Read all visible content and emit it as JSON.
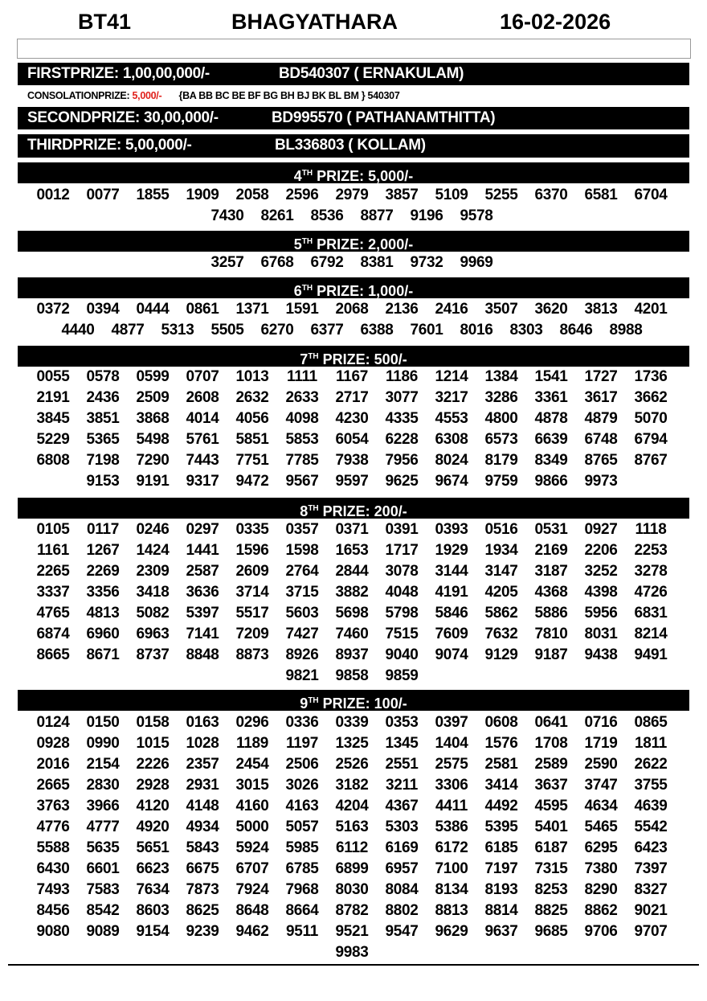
{
  "header": {
    "draw_code": "BT41",
    "lottery_name": "BHAGYATHARA",
    "date": "16-02-2026"
  },
  "first_prize": {
    "label": "FIRSTPRIZE: 1,00,00,000/-",
    "winner": "BD540307 ( ERNAKULAM)"
  },
  "consolation": {
    "label": "CONSOLATIONPRIZE:",
    "amount": "5,000/-",
    "series": "{BA BB BC BE BF BG BH BJ BK BL BM } 540307",
    "amount_color": "#e0201b"
  },
  "second_prize": {
    "label": "SECONDPRIZE: 30,00,000/-",
    "winner": "BD995570 ( PATHANAMTHITTA)"
  },
  "third_prize": {
    "label": "THIRDPRIZE: 5,00,000/-",
    "winner": "BL336803 ( KOLLAM)"
  },
  "prizes": [
    {
      "ordinal": "4",
      "suffix": "TH",
      "label": "PRIZE: 5,000/-",
      "numbers": [
        "0012",
        "0077",
        "1855",
        "1909",
        "2058",
        "2596",
        "2979",
        "3857",
        "5109",
        "5255",
        "6370",
        "6581",
        "6704",
        "7430",
        "8261",
        "8536",
        "8877",
        "9196",
        "9578"
      ]
    },
    {
      "ordinal": "5",
      "suffix": "TH",
      "label": "PRIZE: 2,000/-",
      "numbers": [
        "3257",
        "6768",
        "6792",
        "8381",
        "9732",
        "9969"
      ]
    },
    {
      "ordinal": "6",
      "suffix": "TH",
      "label": "PRIZE: 1,000/-",
      "numbers": [
        "0372",
        "0394",
        "0444",
        "0861",
        "1371",
        "1591",
        "2068",
        "2136",
        "2416",
        "3507",
        "3620",
        "3813",
        "4201",
        "4440",
        "4877",
        "5313",
        "5505",
        "6270",
        "6377",
        "6388",
        "7601",
        "8016",
        "8303",
        "8646",
        "8988"
      ]
    },
    {
      "ordinal": "7",
      "suffix": "TH",
      "label": "PRIZE: 500/-",
      "numbers": [
        "0055",
        "0578",
        "0599",
        "0707",
        "1013",
        "1111",
        "1167",
        "1186",
        "1214",
        "1384",
        "1541",
        "1727",
        "1736",
        "2191",
        "2436",
        "2509",
        "2608",
        "2632",
        "2633",
        "2717",
        "3077",
        "3217",
        "3286",
        "3361",
        "3617",
        "3662",
        "3845",
        "3851",
        "3868",
        "4014",
        "4056",
        "4098",
        "4230",
        "4335",
        "4553",
        "4800",
        "4878",
        "4879",
        "5070",
        "5229",
        "5365",
        "5498",
        "5761",
        "5851",
        "5853",
        "6054",
        "6228",
        "6308",
        "6573",
        "6639",
        "6748",
        "6794",
        "6808",
        "7198",
        "7290",
        "7443",
        "7751",
        "7785",
        "7938",
        "7956",
        "8024",
        "8179",
        "8349",
        "8765",
        "8767",
        "9153",
        "9191",
        "9317",
        "9472",
        "9567",
        "9597",
        "9625",
        "9674",
        "9759",
        "9866",
        "9973"
      ]
    },
    {
      "ordinal": "8",
      "suffix": "TH",
      "label": "PRIZE: 200/-",
      "numbers": [
        "0105",
        "0117",
        "0246",
        "0297",
        "0335",
        "0357",
        "0371",
        "0391",
        "0393",
        "0516",
        "0531",
        "0927",
        "1118",
        "1161",
        "1267",
        "1424",
        "1441",
        "1596",
        "1598",
        "1653",
        "1717",
        "1929",
        "1934",
        "2169",
        "2206",
        "2253",
        "2265",
        "2269",
        "2309",
        "2587",
        "2609",
        "2764",
        "2844",
        "3078",
        "3144",
        "3147",
        "3187",
        "3252",
        "3278",
        "3337",
        "3356",
        "3418",
        "3636",
        "3714",
        "3715",
        "3882",
        "4048",
        "4191",
        "4205",
        "4368",
        "4398",
        "4726",
        "4765",
        "4813",
        "5082",
        "5397",
        "5517",
        "5603",
        "5698",
        "5798",
        "5846",
        "5862",
        "5886",
        "5956",
        "6831",
        "6874",
        "6960",
        "6963",
        "7141",
        "7209",
        "7427",
        "7460",
        "7515",
        "7609",
        "7632",
        "7810",
        "8031",
        "8214",
        "8665",
        "8671",
        "8737",
        "8848",
        "8873",
        "8926",
        "8937",
        "9040",
        "9074",
        "9129",
        "9187",
        "9438",
        "9491",
        "9821",
        "9858",
        "9859"
      ]
    },
    {
      "ordinal": "9",
      "suffix": "TH",
      "label": "PRIZE: 100/-",
      "numbers": [
        "0124",
        "0150",
        "0158",
        "0163",
        "0296",
        "0336",
        "0339",
        "0353",
        "0397",
        "0608",
        "0641",
        "0716",
        "0865",
        "0928",
        "0990",
        "1015",
        "1028",
        "1189",
        "1197",
        "1325",
        "1345",
        "1404",
        "1576",
        "1708",
        "1719",
        "1811",
        "2016",
        "2154",
        "2226",
        "2357",
        "2454",
        "2506",
        "2526",
        "2551",
        "2575",
        "2581",
        "2589",
        "2590",
        "2622",
        "2665",
        "2830",
        "2928",
        "2931",
        "3015",
        "3026",
        "3182",
        "3211",
        "3306",
        "3414",
        "3637",
        "3747",
        "3755",
        "3763",
        "3966",
        "4120",
        "4148",
        "4160",
        "4163",
        "4204",
        "4367",
        "4411",
        "4492",
        "4595",
        "4634",
        "4639",
        "4776",
        "4777",
        "4920",
        "4934",
        "5000",
        "5057",
        "5163",
        "5303",
        "5386",
        "5395",
        "5401",
        "5465",
        "5542",
        "5588",
        "5635",
        "5651",
        "5843",
        "5924",
        "5985",
        "6112",
        "6169",
        "6172",
        "6185",
        "6187",
        "6295",
        "6423",
        "6430",
        "6601",
        "6623",
        "6675",
        "6707",
        "6785",
        "6899",
        "6957",
        "7100",
        "7197",
        "7315",
        "7380",
        "7397",
        "7493",
        "7583",
        "7634",
        "7873",
        "7924",
        "7968",
        "8030",
        "8084",
        "8134",
        "8193",
        "8253",
        "8290",
        "8327",
        "8456",
        "8542",
        "8603",
        "8625",
        "8648",
        "8664",
        "8782",
        "8802",
        "8813",
        "8814",
        "8825",
        "8862",
        "9021",
        "9080",
        "9089",
        "9154",
        "9239",
        "9462",
        "9511",
        "9521",
        "9547",
        "9629",
        "9637",
        "9685",
        "9706",
        "9707",
        "9983"
      ]
    }
  ]
}
